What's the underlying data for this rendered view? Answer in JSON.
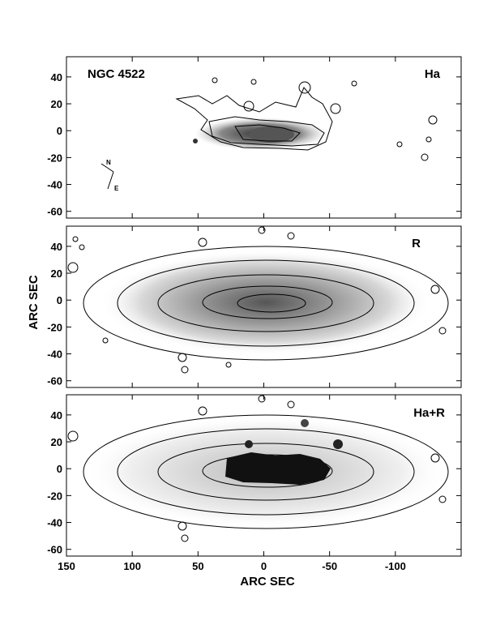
{
  "figure": {
    "object_label": "NGC 4522",
    "x_axis_title": "ARC SEC",
    "y_axis_title": "ARC SEC",
    "compass": {
      "north": "N",
      "east": "E"
    }
  },
  "axes": {
    "x_range": [
      150,
      -150
    ],
    "y_range": [
      -65,
      55
    ],
    "x_ticks": [
      "150",
      "100",
      "50",
      "0",
      "-50",
      "-100"
    ],
    "x_tick_values": [
      150,
      100,
      50,
      0,
      -50,
      -100
    ],
    "y_ticks": [
      "40",
      "20",
      "0",
      "-20",
      "-40",
      "-60"
    ],
    "y_tick_values": [
      40,
      20,
      0,
      -20,
      -40,
      -60
    ]
  },
  "panels": [
    {
      "id": "ha",
      "label": "Ha",
      "color_accent": "#000000"
    },
    {
      "id": "r",
      "label": "R",
      "color_accent": "#000000"
    },
    {
      "id": "ha-r",
      "label": "Ha+R",
      "color_accent": "#000000"
    }
  ]
}
